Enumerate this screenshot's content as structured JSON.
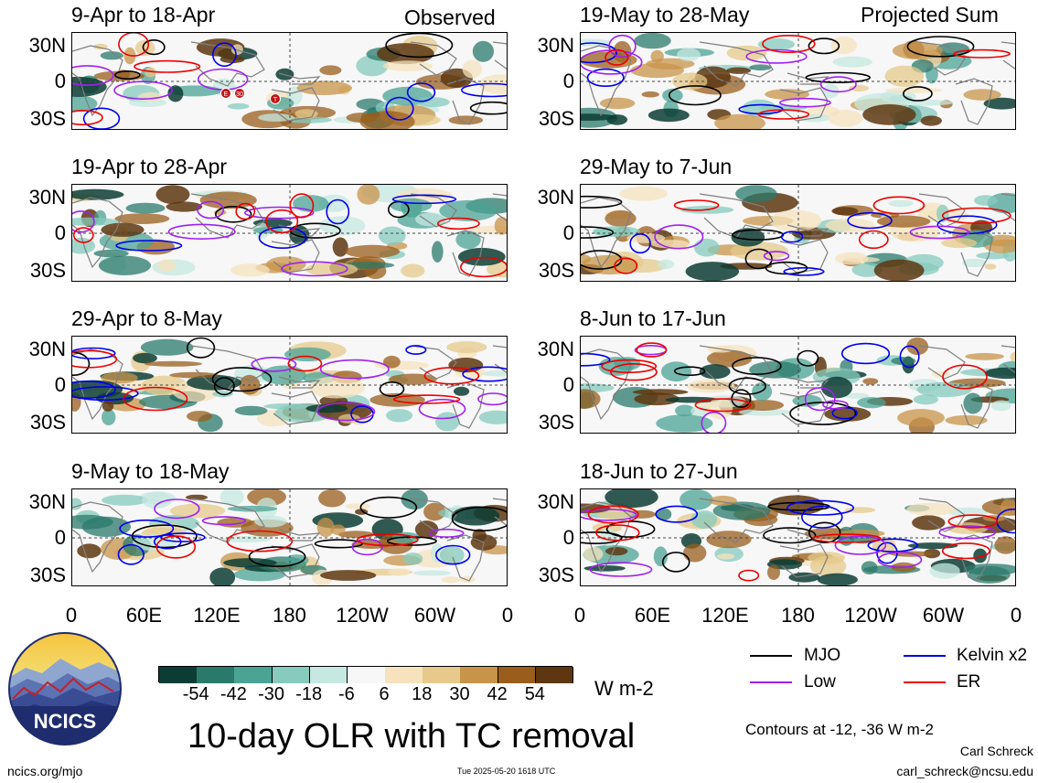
{
  "column_heads": {
    "left": "Observed",
    "right": "Projected Sum"
  },
  "panels": [
    {
      "title": "9-Apr to 18-Apr",
      "column": "observed",
      "tc_markers": [
        "E",
        "30",
        "T"
      ]
    },
    {
      "title": "19-Apr to 28-Apr",
      "column": "observed"
    },
    {
      "title": "29-Apr to 8-May",
      "column": "observed"
    },
    {
      "title": "9-May to 18-May",
      "column": "observed"
    },
    {
      "title": "19-May to 28-May",
      "column": "projected"
    },
    {
      "title": "29-May to 7-Jun",
      "column": "projected"
    },
    {
      "title": "8-Jun to 17-Jun",
      "column": "projected"
    },
    {
      "title": "18-Jun to 27-Jun",
      "column": "projected"
    }
  ],
  "chart_data": {
    "type": "heatmap",
    "title": "10-day OLR with TC removal",
    "units": "W m-2",
    "ylabels": [
      "30N",
      "0",
      "30S"
    ],
    "xlabels": [
      "0",
      "60E",
      "120E",
      "180",
      "120W",
      "60W",
      "0"
    ],
    "colorbar": {
      "ticks": [
        "-54",
        "-42",
        "-30",
        "-18",
        "-6",
        "6",
        "18",
        "30",
        "42",
        "54"
      ],
      "colors": [
        "#0c3d34",
        "#2a7a6b",
        "#4ba394",
        "#86cbbd",
        "#c6e8e0",
        "#f7f7f7",
        "#f6e3bd",
        "#e6c98b",
        "#c8944a",
        "#9a5e1c",
        "#5e3711"
      ]
    },
    "legend": [
      {
        "name": "MJO",
        "color": "#000000"
      },
      {
        "name": "Kelvin x2",
        "color": "#0000ee"
      },
      {
        "name": "Low",
        "color": "#a020f0"
      },
      {
        "name": "ER",
        "color": "#ee0000"
      }
    ],
    "contour_note": "Contours at -12, -36 W m-2"
  },
  "footer": {
    "site": "ncics.org/mjo",
    "timestamp": "Tue 2025-05-20 1618 UTC",
    "author": "Carl Schreck",
    "email": "carl_schreck@ncsu.edu",
    "logo_text": "NCICS"
  }
}
